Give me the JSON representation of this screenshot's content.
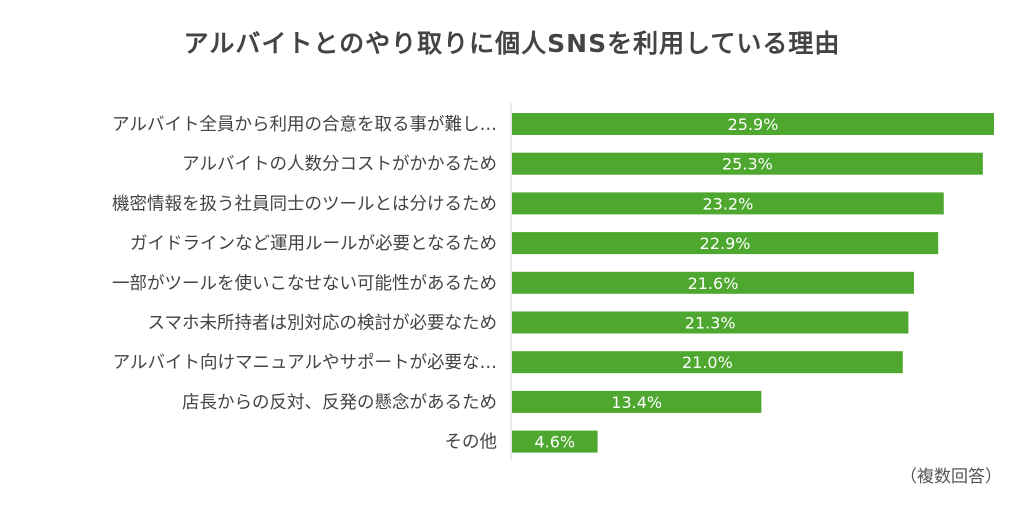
{
  "title": "アルバイトとのやり取りに個人SNSを利用している理由",
  "note": "（複数回答）",
  "colors": {
    "bar": "#4ea72e",
    "axis": "#d0d0d0"
  },
  "chart_data": {
    "type": "bar",
    "orientation": "horizontal",
    "unit": "%",
    "categories": [
      "アルバイト全員から利用の合意を取る事が難し…",
      "アルバイトの人数分コストがかかるため",
      "機密情報を扱う社員同士のツールとは分けるため",
      "ガイドラインなど運用ルールが必要となるため",
      "一部がツールを使いこなせない可能性があるため",
      "スマホ未所持者は別対応の検討が必要なため",
      "アルバイト向けマニュアルやサポートが必要な…",
      "店長からの反対、反発の懸念があるため",
      "その他"
    ],
    "values": [
      25.9,
      25.3,
      23.2,
      22.9,
      21.6,
      21.3,
      21.0,
      13.4,
      4.6
    ],
    "labels": [
      "25.9%",
      "25.3%",
      "23.2%",
      "22.9%",
      "21.6%",
      "21.3%",
      "21.0%",
      "13.4%",
      "4.6%"
    ],
    "xlim": [
      0,
      25.9
    ]
  }
}
